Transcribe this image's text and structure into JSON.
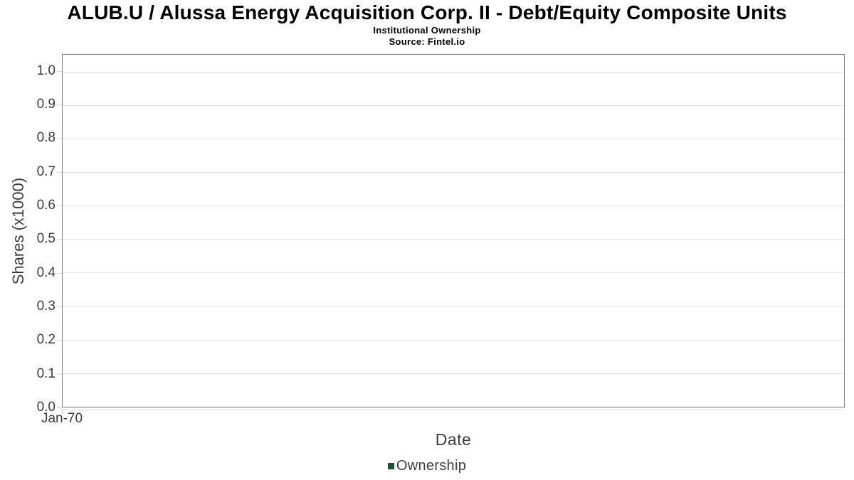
{
  "header": {
    "title": "ALUB.U / Alussa Energy Acquisition Corp. II - Debt/Equity Composite Units",
    "subtitle": "Institutional Ownership",
    "source": "Source: Fintel.io"
  },
  "chart_data": {
    "type": "line",
    "title": "ALUB.U / Alussa Energy Acquisition Corp. II - Debt/Equity Composite Units",
    "subtitle": "Institutional Ownership",
    "source": "Source: Fintel.io",
    "xlabel": "Date",
    "ylabel": "Shares (x1000)",
    "ylim": [
      0,
      1.05
    ],
    "grid": true,
    "legend_position": "bottom",
    "y_ticks": [
      {
        "label": "0.0",
        "value": 0.0
      },
      {
        "label": "0.1",
        "value": 0.1
      },
      {
        "label": "0.2",
        "value": 0.2
      },
      {
        "label": "0.3",
        "value": 0.3
      },
      {
        "label": "0.4",
        "value": 0.4
      },
      {
        "label": "0.5",
        "value": 0.5
      },
      {
        "label": "0.6",
        "value": 0.6
      },
      {
        "label": "0.7",
        "value": 0.7
      },
      {
        "label": "0.8",
        "value": 0.8
      },
      {
        "label": "0.9",
        "value": 0.9
      },
      {
        "label": "1.0",
        "value": 1.0
      }
    ],
    "x_ticks": [
      {
        "label": "Jan-70",
        "position": 0
      }
    ],
    "series": [
      {
        "name": "Ownership",
        "color": "#1d5130",
        "x": [],
        "values": []
      }
    ]
  },
  "colors": {
    "plot_border": "#7e7e7e",
    "gridline": "#e4e4e4",
    "axis_line": "#d9d9d9",
    "tick_mark": "#d6d6d6",
    "title_text": "#000000",
    "axis_text": "#3d3d3d",
    "legend_marker": "#1d5130"
  }
}
